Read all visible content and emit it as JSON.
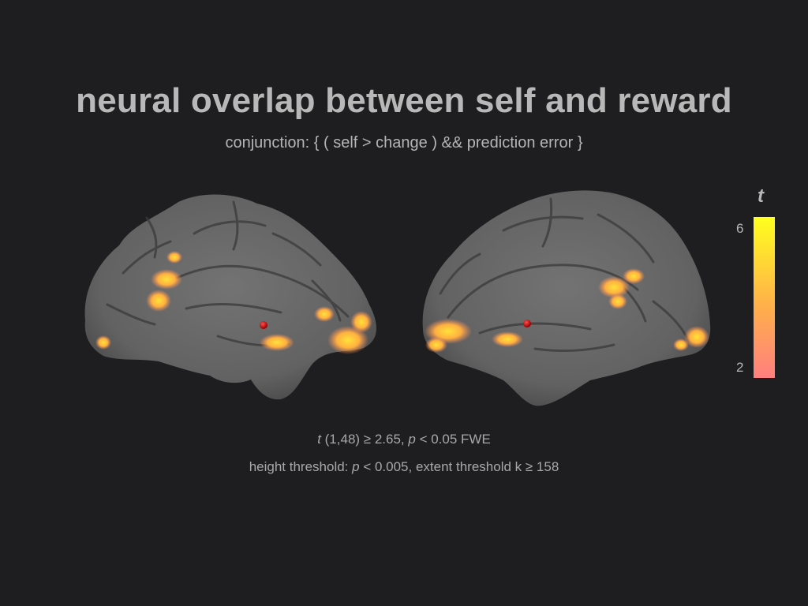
{
  "title": "neural overlap between self and reward",
  "subtitle": "conjunction: { ( self > change ) && prediction error }",
  "colorbar": {
    "label": "t",
    "max_label": "6",
    "min_label": "2",
    "min_value": 2,
    "max_value": 6,
    "color_low": "#ff7f7f",
    "color_mid": "#ffb04a",
    "color_high": "#ffff1e"
  },
  "stats": {
    "line1_stat": "t",
    "line1_rest": " (1,48) ≥ 2.65,  ",
    "line1_p": "p",
    "line1_end": " < 0.05 FWE",
    "line2_start": "height threshold: ",
    "line2_p": "p",
    "line2_end": " < 0.005,  extent threshold k ≥ 158"
  },
  "colors": {
    "background": "#1e1e20",
    "cortex": "#6a6a6a",
    "marker": "#cc1010"
  }
}
